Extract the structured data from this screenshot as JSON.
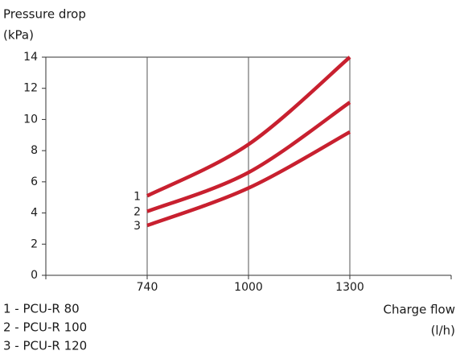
{
  "chart_data": {
    "type": "line",
    "y_label": [
      "Pressure drop",
      "(kPa)"
    ],
    "x_label": [
      "Charge flow",
      "(l/h)"
    ],
    "categories": [
      null,
      "740",
      "1000",
      "1300",
      null
    ],
    "series": [
      {
        "name": "1 - PCU-R 80",
        "label": "1",
        "color": "#c8202f",
        "values": [
          null,
          5.1,
          8.4,
          14,
          null
        ]
      },
      {
        "name": "2 - PCU-R 100",
        "label": "2",
        "color": "#c8202f",
        "values": [
          null,
          4.1,
          6.6,
          11.1,
          null
        ]
      },
      {
        "name": "3 - PCU-R 120",
        "label": "3",
        "color": "#c8202f",
        "values": [
          null,
          3.2,
          5.6,
          9.2,
          null
        ]
      }
    ],
    "ylim": [
      0,
      14
    ],
    "yticks": [
      0,
      2,
      4,
      6,
      8,
      10,
      12,
      14
    ],
    "grid": true
  }
}
